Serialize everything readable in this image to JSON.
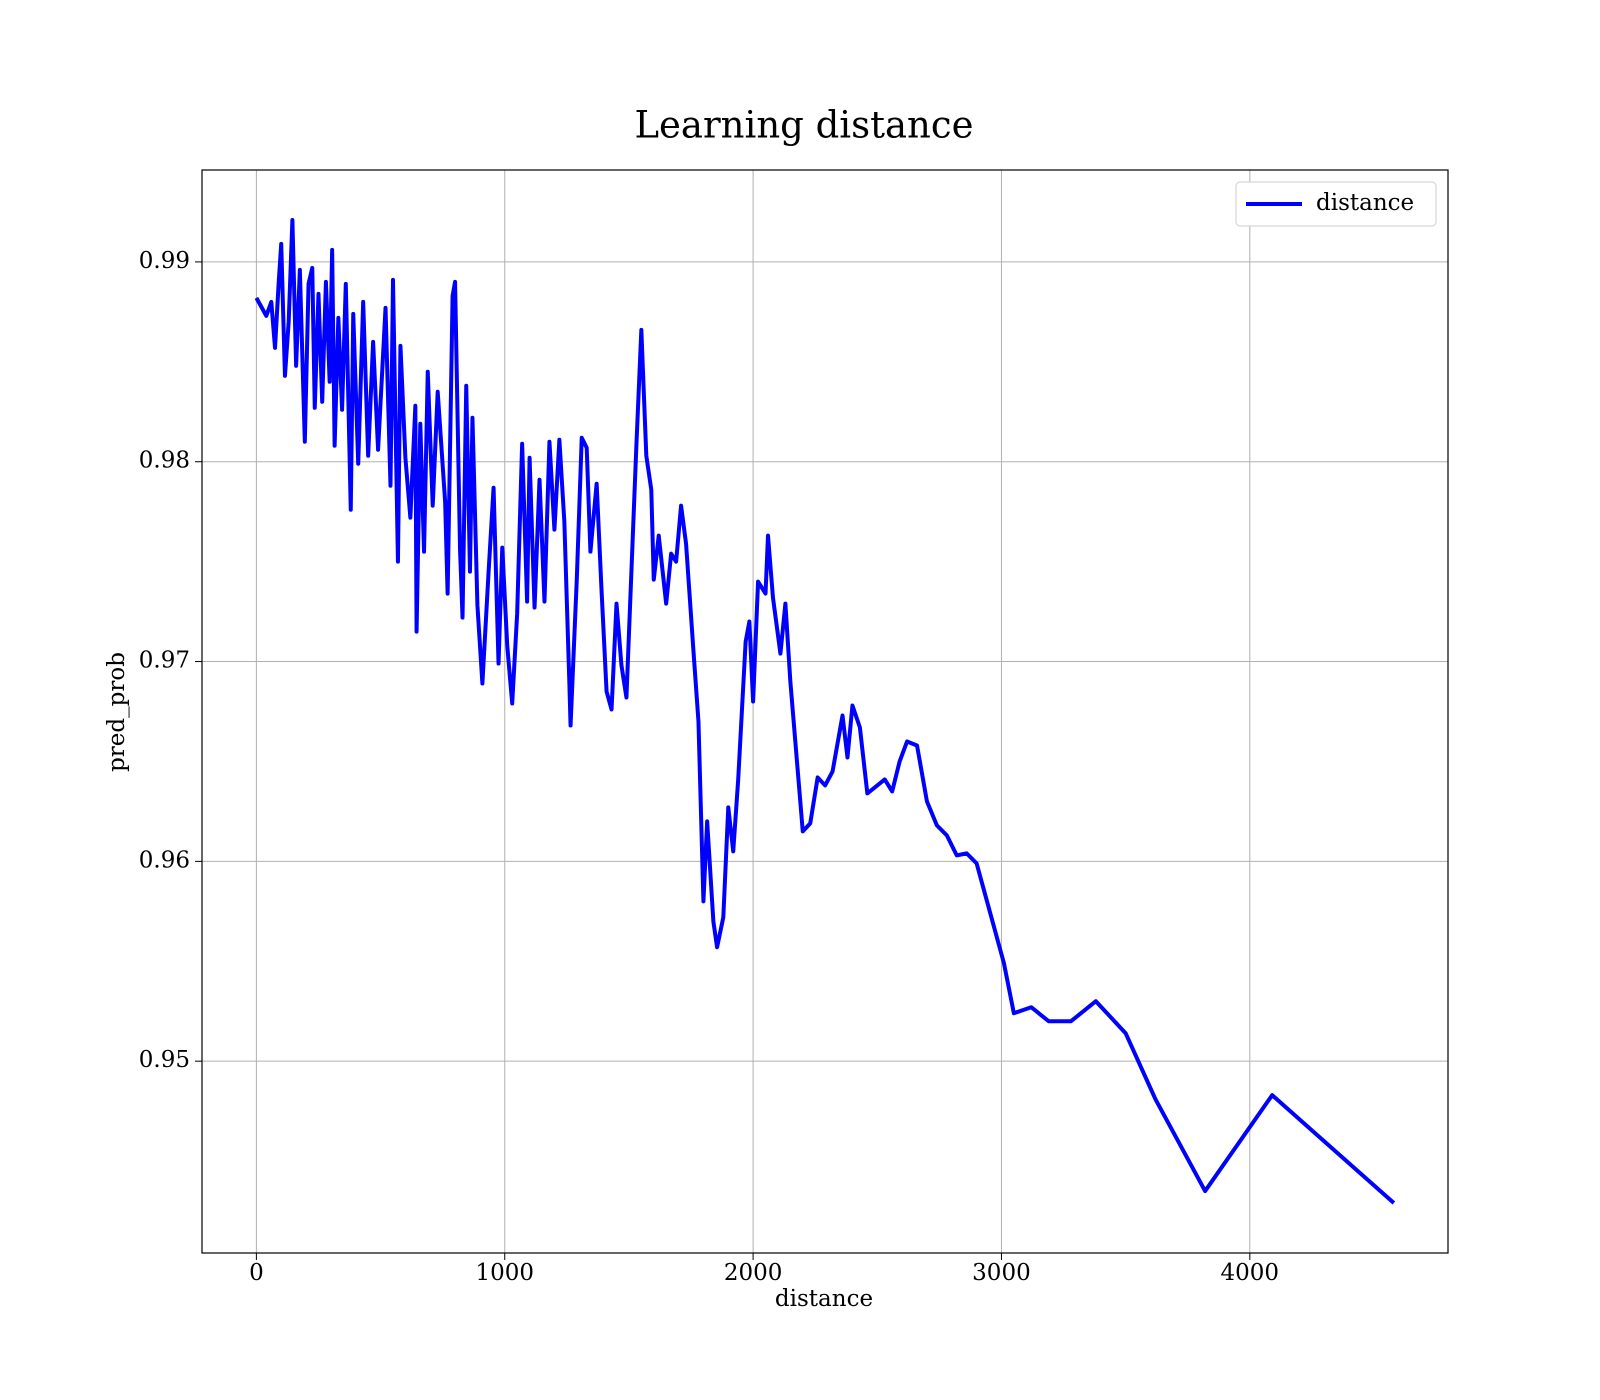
{
  "chart_data": {
    "type": "line",
    "title": "Learning distance",
    "x_label": "distance",
    "y_label": "pred_prob",
    "x": [
      0,
      40,
      60,
      75,
      90,
      100,
      115,
      130,
      145,
      160,
      175,
      195,
      210,
      225,
      235,
      250,
      265,
      280,
      295,
      305,
      315,
      330,
      345,
      360,
      380,
      390,
      410,
      430,
      450,
      470,
      490,
      520,
      540,
      550,
      570,
      580,
      600,
      620,
      640,
      645,
      660,
      675,
      690,
      710,
      730,
      760,
      770,
      790,
      800,
      820,
      830,
      845,
      860,
      870,
      890,
      910,
      935,
      955,
      975,
      990,
      1010,
      1030,
      1050,
      1070,
      1090,
      1100,
      1120,
      1140,
      1160,
      1180,
      1200,
      1220,
      1240,
      1260,
      1265,
      1290,
      1310,
      1330,
      1345,
      1370,
      1390,
      1410,
      1430,
      1450,
      1470,
      1490,
      1510,
      1530,
      1550,
      1570,
      1590,
      1600,
      1620,
      1650,
      1670,
      1690,
      1710,
      1730,
      1760,
      1780,
      1800,
      1815,
      1840,
      1855,
      1880,
      1900,
      1920,
      1940,
      1970,
      1985,
      2000,
      2020,
      2050,
      2060,
      2080,
      2110,
      2130,
      2150,
      2200,
      2230,
      2260,
      2290,
      2320,
      2360,
      2380,
      2400,
      2430,
      2460,
      2490,
      2530,
      2560,
      2590,
      2620,
      2660,
      2700,
      2740,
      2780,
      2820,
      2860,
      2900,
      3010,
      3050,
      3120,
      3190,
      3280,
      3380,
      3500,
      3620,
      3820,
      4090,
      4580
    ],
    "series": [
      {
        "name": "distance",
        "color": "#0000ff",
        "values": [
          0.9882,
          0.9873,
          0.988,
          0.9857,
          0.989,
          0.9909,
          0.9843,
          0.987,
          0.9921,
          0.9848,
          0.9896,
          0.981,
          0.9889,
          0.9897,
          0.9827,
          0.9884,
          0.983,
          0.989,
          0.984,
          0.9906,
          0.9808,
          0.9872,
          0.9826,
          0.9889,
          0.9776,
          0.9874,
          0.9799,
          0.988,
          0.9803,
          0.986,
          0.9806,
          0.9877,
          0.9788,
          0.9891,
          0.975,
          0.9858,
          0.9802,
          0.9772,
          0.9828,
          0.9715,
          0.9819,
          0.9755,
          0.9845,
          0.9778,
          0.9835,
          0.978,
          0.9734,
          0.9883,
          0.989,
          0.9756,
          0.9722,
          0.9838,
          0.9745,
          0.9822,
          0.9728,
          0.9689,
          0.9745,
          0.9787,
          0.9699,
          0.9757,
          0.9708,
          0.9679,
          0.9724,
          0.9809,
          0.973,
          0.9802,
          0.9727,
          0.9791,
          0.973,
          0.981,
          0.9766,
          0.9811,
          0.977,
          0.969,
          0.9668,
          0.9741,
          0.9812,
          0.9807,
          0.9755,
          0.9789,
          0.9735,
          0.9685,
          0.9676,
          0.9729,
          0.9698,
          0.9682,
          0.9745,
          0.9808,
          0.9866,
          0.9803,
          0.9786,
          0.9741,
          0.9763,
          0.9729,
          0.9754,
          0.975,
          0.9778,
          0.9759,
          0.9705,
          0.967,
          0.958,
          0.962,
          0.957,
          0.9557,
          0.9572,
          0.9627,
          0.9605,
          0.9641,
          0.971,
          0.972,
          0.968,
          0.974,
          0.9734,
          0.9763,
          0.9732,
          0.9704,
          0.9729,
          0.969,
          0.9615,
          0.9619,
          0.9642,
          0.9638,
          0.9645,
          0.9673,
          0.9652,
          0.9678,
          0.9667,
          0.9634,
          0.9637,
          0.9641,
          0.9635,
          0.965,
          0.966,
          0.9658,
          0.963,
          0.9618,
          0.9613,
          0.9603,
          0.9604,
          0.9599,
          0.9549,
          0.9524,
          0.9527,
          0.952,
          0.952,
          0.953,
          0.9514,
          0.9481,
          0.9435,
          0.9483,
          0.9429
        ]
      }
    ],
    "xlim": [
      -219,
      4798
    ],
    "ylim": [
      0.9404,
      0.9946
    ],
    "xticks": [
      0,
      1000,
      2000,
      3000,
      4000
    ],
    "yticks": [
      0.95,
      0.96,
      0.97,
      0.98,
      0.99
    ],
    "grid": true,
    "legend": "upper right"
  }
}
